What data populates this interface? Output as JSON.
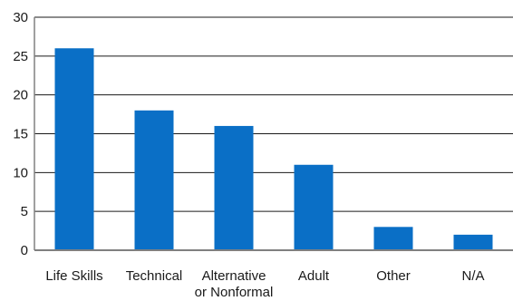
{
  "chart_data": {
    "type": "bar",
    "categories": [
      "Life Skills",
      "Technical",
      "Alternative or Nonformal",
      "Adult",
      "Other",
      "N/A"
    ],
    "category_lines": [
      [
        "Life Skills"
      ],
      [
        "Technical"
      ],
      [
        "Alternative",
        "or Nonformal"
      ],
      [
        "Adult"
      ],
      [
        "Other"
      ],
      [
        "N/A"
      ]
    ],
    "values": [
      26,
      18,
      16,
      11,
      3,
      2
    ],
    "title": "",
    "xlabel": "",
    "ylabel": "",
    "ylim": [
      0,
      30
    ],
    "yticks": [
      0,
      5,
      10,
      15,
      20,
      25,
      30
    ],
    "grid": true,
    "bar_color": "#0a6fc6",
    "grid_color": "#1a1a1a",
    "axis_color": "#808080"
  }
}
